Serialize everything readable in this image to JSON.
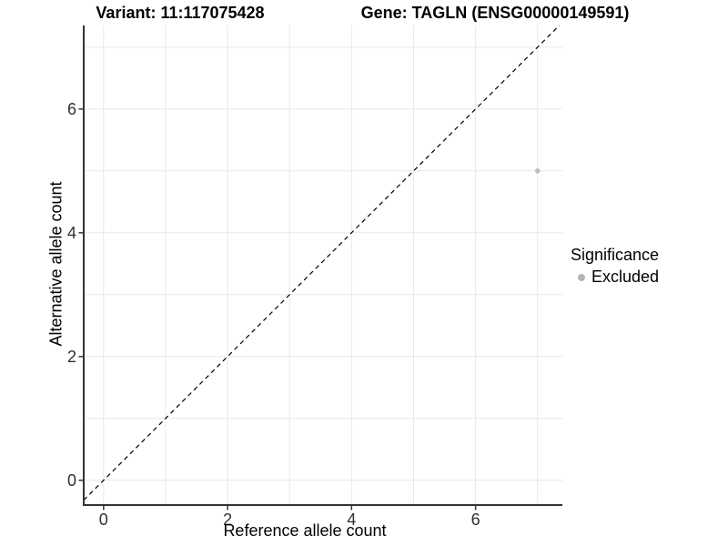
{
  "chart_data": {
    "type": "scatter",
    "title_left": "Variant: 11:117075428",
    "title_right": "Gene: TAGLN (ENSG00000149591)",
    "xlabel": "Reference allele count",
    "ylabel": "Alternative allele count",
    "xlim": [
      -0.32,
      7.4
    ],
    "ylim": [
      -0.4,
      7.35
    ],
    "x_ticks": [
      0,
      2,
      4,
      6
    ],
    "y_ticks": [
      0,
      2,
      4,
      6
    ],
    "x_gridlines": [
      0,
      1,
      2,
      3,
      4,
      5,
      6,
      7
    ],
    "y_gridlines": [
      0,
      1,
      2,
      3,
      4,
      5,
      6,
      7
    ],
    "grid": true,
    "points": [
      {
        "x": 7,
        "y": 5,
        "series": "Excluded"
      }
    ],
    "reference_line": {
      "type": "identity",
      "style": "dashed",
      "color": "#000000"
    },
    "legend": {
      "title": "Significance",
      "position": "right",
      "items": [
        {
          "label": "Excluded",
          "color": "#b5b5b5"
        }
      ]
    },
    "colors": {
      "point": "#bdbdbd",
      "gridline": "#e8e8e8",
      "axis_line": "#333333",
      "tick_text": "#303030"
    }
  }
}
